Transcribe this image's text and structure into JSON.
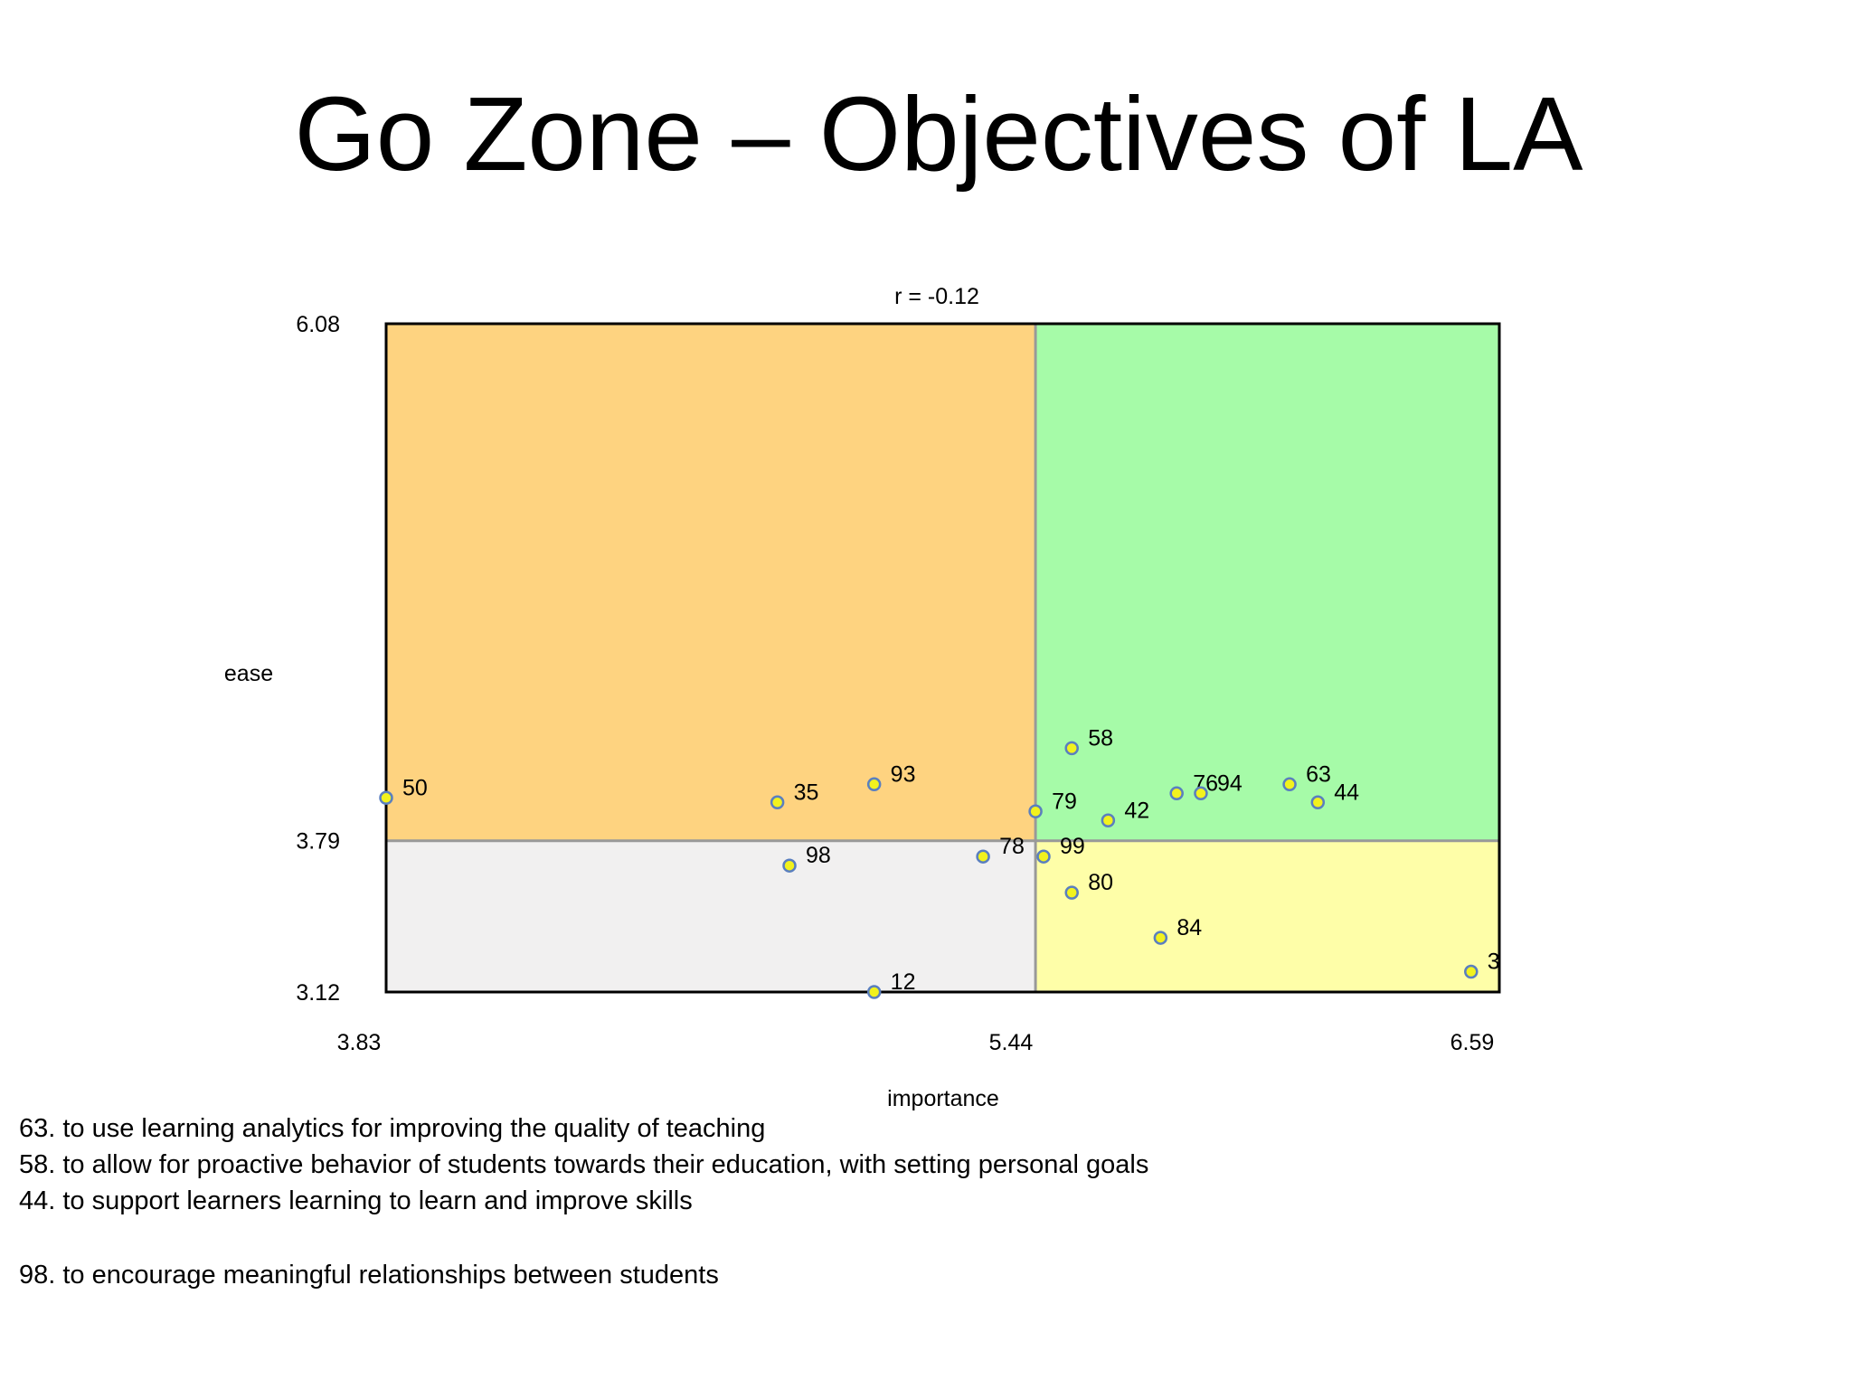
{
  "slide": {
    "title": "Go Zone – Objectives of LA"
  },
  "chart_data": {
    "type": "scatter",
    "title": "r = -0.12",
    "xlabel": "importance",
    "ylabel": "ease",
    "xlim": [
      3.83,
      6.59
    ],
    "ylim": [
      3.12,
      6.08
    ],
    "x_mean": 5.44,
    "y_mean": 3.79,
    "x_ticks": [
      "3.83",
      "5.44",
      "6.59"
    ],
    "y_ticks": [
      "6.08",
      "3.79",
      "3.12"
    ],
    "quadrant_colors": {
      "high_high": "#A6FBA8",
      "low_high": "#FED380",
      "low_low": "#F1F0F0",
      "high_low": "#FEFEA8"
    },
    "point_color": "#F2F21E",
    "point_edge": "#5A7FBF",
    "points": [
      {
        "label": "50",
        "x": 3.83,
        "y": 3.98
      },
      {
        "label": "93",
        "x": 5.04,
        "y": 4.04
      },
      {
        "label": "35",
        "x": 4.8,
        "y": 3.96
      },
      {
        "label": "98",
        "x": 4.83,
        "y": 3.68
      },
      {
        "label": "12",
        "x": 5.04,
        "y": 3.12
      },
      {
        "label": "78",
        "x": 5.31,
        "y": 3.72
      },
      {
        "label": "58",
        "x": 5.53,
        "y": 4.2
      },
      {
        "label": "76",
        "x": 5.79,
        "y": 4.0
      },
      {
        "label": "94",
        "x": 5.85,
        "y": 4.0
      },
      {
        "label": "63",
        "x": 6.07,
        "y": 4.04
      },
      {
        "label": "44",
        "x": 6.14,
        "y": 3.96
      },
      {
        "label": "79",
        "x": 5.44,
        "y": 3.92
      },
      {
        "label": "42",
        "x": 5.62,
        "y": 3.88
      },
      {
        "label": "99",
        "x": 5.46,
        "y": 3.72
      },
      {
        "label": "80",
        "x": 5.53,
        "y": 3.56
      },
      {
        "label": "84",
        "x": 5.75,
        "y": 3.36
      },
      {
        "label": "3",
        "x": 6.52,
        "y": 3.21
      }
    ]
  },
  "notes": {
    "top": [
      "63. to use learning analytics for improving the quality of teaching",
      "58. to allow for proactive behavior of students towards their education, with setting personal goals",
      "44. to support learners learning to learn and improve skills"
    ],
    "bottom": [
      "98. to encourage meaningful relationships between students"
    ]
  }
}
